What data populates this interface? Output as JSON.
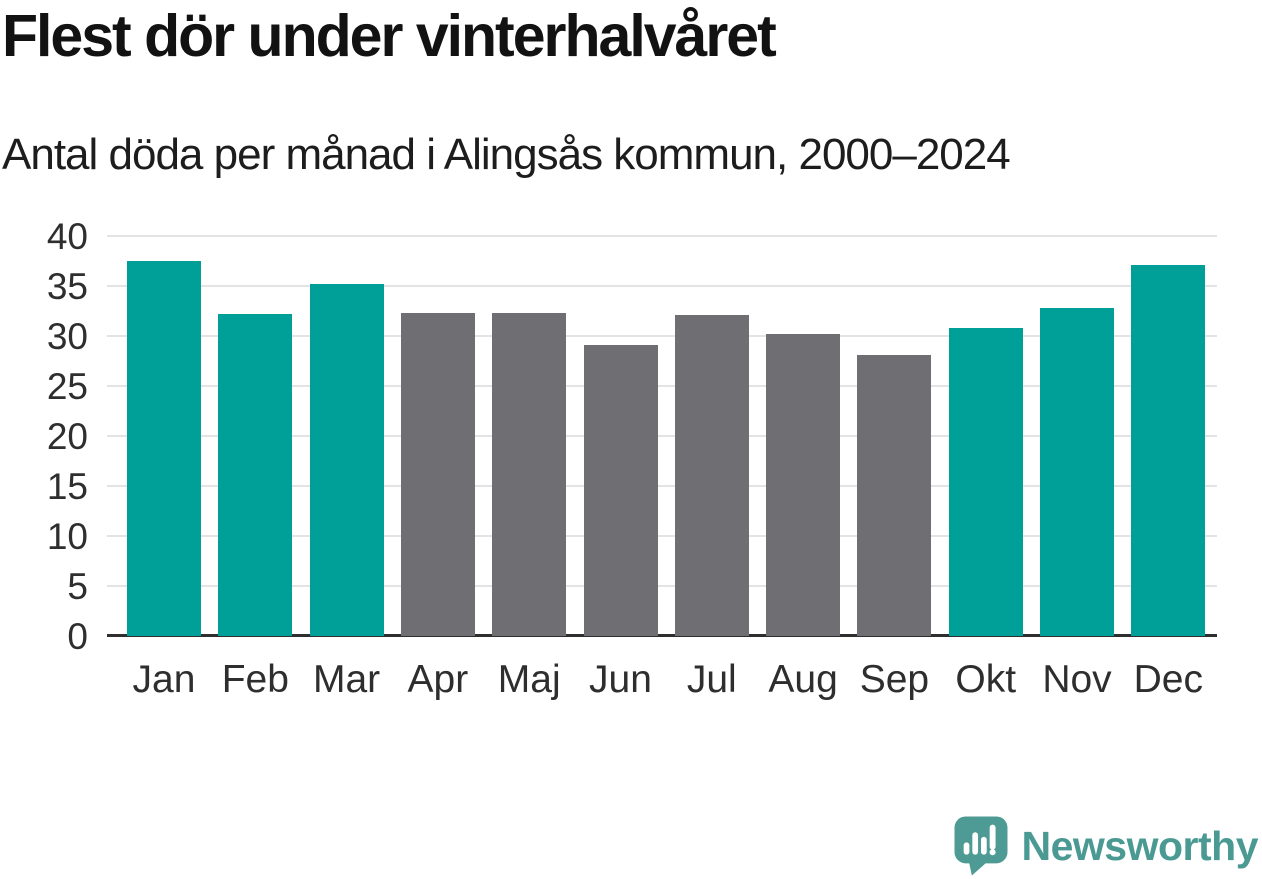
{
  "chart_data": {
    "type": "bar",
    "title": "Flest dör under vinterhalvåret",
    "subtitle": "Antal döda per månad i Alingsås kommun, 2000–2024",
    "categories": [
      "Jan",
      "Feb",
      "Mar",
      "Apr",
      "Maj",
      "Jun",
      "Jul",
      "Aug",
      "Sep",
      "Okt",
      "Nov",
      "Dec"
    ],
    "values": [
      37.5,
      32.2,
      35.2,
      32.3,
      32.3,
      29.1,
      32.1,
      30.2,
      28.1,
      30.8,
      32.8,
      37.1
    ],
    "bar_seasons": [
      "winter",
      "winter",
      "winter",
      "summer",
      "summer",
      "summer",
      "summer",
      "summer",
      "summer",
      "winter",
      "winter",
      "winter"
    ],
    "colors": {
      "winter": "#00A099",
      "summer": "#6E6E73"
    },
    "xlabel": "",
    "ylabel": "",
    "ylim": [
      0,
      40
    ],
    "yticks": [
      0,
      5,
      10,
      15,
      20,
      25,
      30,
      35,
      40
    ],
    "grid": "horizontal",
    "legend": "none",
    "grid_color": "#E3E3E3",
    "axis_color": "#2E2E2E"
  },
  "logo": {
    "text": "Newsworthy",
    "icon": "newsworthy-speech-bubble-chart-icon",
    "mark_color": "#4D9B94",
    "text_color": "#4A9A93"
  }
}
